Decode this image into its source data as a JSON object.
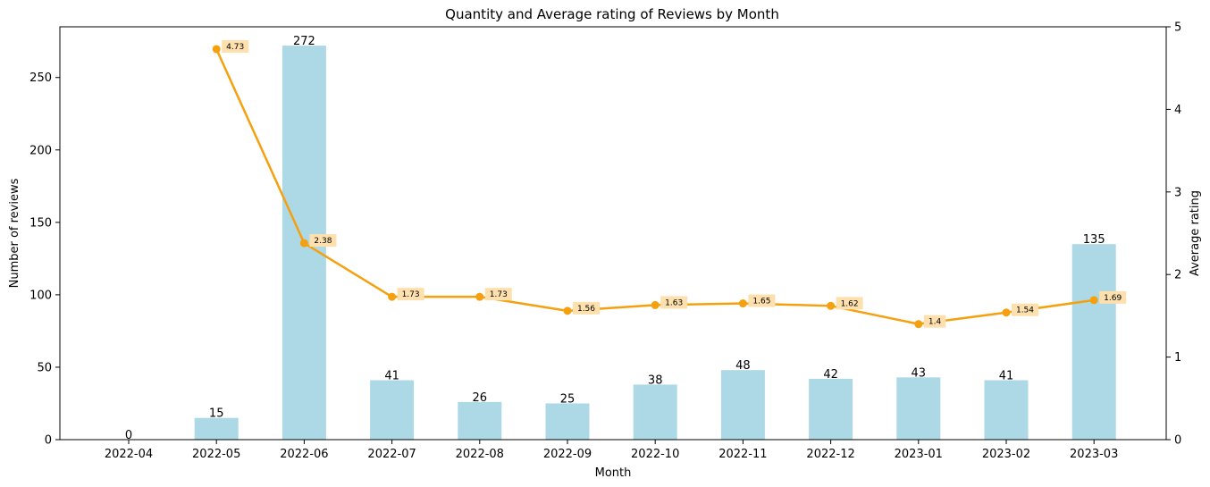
{
  "chart_data": {
    "type": "bar",
    "title": "Quantity and Average rating of Reviews by Month",
    "xlabel": "Month",
    "ylabel": "Number of reviews",
    "y2label": "Average rating",
    "categories": [
      "2022-04",
      "2022-05",
      "2022-06",
      "2022-07",
      "2022-08",
      "2022-09",
      "2022-10",
      "2022-11",
      "2022-12",
      "2023-01",
      "2023-02",
      "2023-03"
    ],
    "ylim": [
      0,
      285
    ],
    "y2lim": [
      0,
      5
    ],
    "yticks": [
      0,
      50,
      100,
      150,
      200,
      250
    ],
    "y2ticks": [
      0,
      1,
      2,
      3,
      4,
      5
    ],
    "grid": false,
    "series": [
      {
        "kind": "bar",
        "axis": "left",
        "color": "#add8e6",
        "values": [
          0,
          15,
          272,
          41,
          26,
          25,
          38,
          48,
          42,
          43,
          41,
          135
        ],
        "labels": [
          "0",
          "15",
          "272",
          "41",
          "26",
          "25",
          "38",
          "48",
          "42",
          "43",
          "41",
          "135"
        ]
      },
      {
        "kind": "line",
        "axis": "right",
        "color": "#f5a00f",
        "label_bg": "#fde0ad",
        "values": [
          null,
          4.73,
          2.38,
          1.73,
          1.73,
          1.56,
          1.63,
          1.65,
          1.62,
          1.4,
          1.54,
          1.69
        ],
        "labels": [
          "",
          "4.73",
          "2.38",
          "1.73",
          "1.73",
          "1.56",
          "1.63",
          "1.65",
          "1.62",
          "1.4",
          "1.54",
          "1.69"
        ]
      }
    ]
  }
}
